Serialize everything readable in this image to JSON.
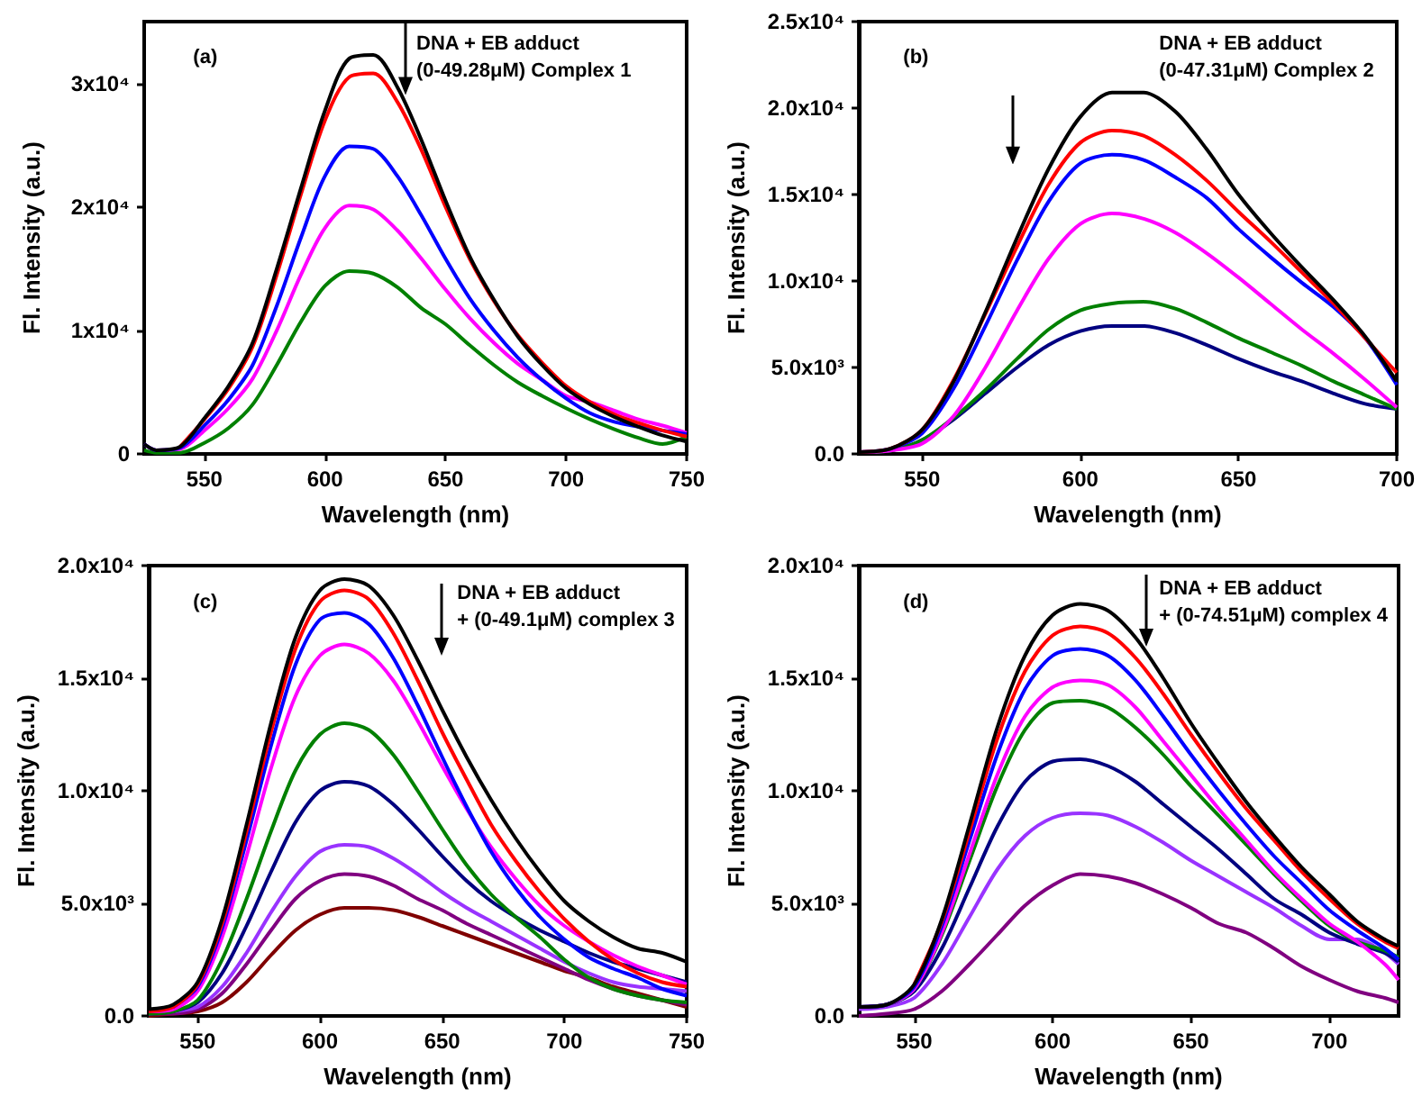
{
  "chart_data": [
    {
      "type": "line",
      "xlabel": "Wavelength (nm)",
      "ylabel": "Fl. Intensity (a.u.)",
      "annotations": [
        "(a)",
        "DNA + EB adduct",
        "(0-49.28μM) Complex 1"
      ],
      "xlim": [
        525,
        750
      ],
      "xticks": [
        550,
        600,
        650,
        700,
        750
      ],
      "ylim": [
        0,
        35000
      ],
      "yticks": [
        0,
        {
          "value": 10000,
          "label": "1x10⁴"
        },
        {
          "value": 20000,
          "label": "2x10⁴"
        },
        {
          "value": 30000,
          "label": "3x10⁴"
        }
      ],
      "x": [
        525,
        530,
        540,
        550,
        560,
        570,
        580,
        590,
        600,
        610,
        620,
        630,
        640,
        650,
        660,
        670,
        680,
        690,
        700,
        710,
        720,
        730,
        740,
        750
      ],
      "series": [
        {
          "color": "#000000",
          "values": [
            800,
            300,
            600,
            2900,
            5500,
            9000,
            15000,
            21500,
            27800,
            32000,
            32300,
            29700,
            25400,
            20500,
            16000,
            12500,
            9500,
            7200,
            5300,
            4000,
            3000,
            2200,
            1500,
            1000
          ]
        },
        {
          "color": "#ff0000",
          "values": [
            null,
            null,
            600,
            2800,
            5300,
            8700,
            14500,
            21000,
            27000,
            30500,
            30800,
            28500,
            24600,
            20000,
            15800,
            12400,
            9600,
            7400,
            5500,
            4200,
            3200,
            2500,
            1900,
            1400
          ]
        },
        {
          "color": "#0000ff",
          "values": [
            800,
            300,
            500,
            2300,
            4400,
            7200,
            12000,
            17500,
            22500,
            24900,
            24700,
            22500,
            19300,
            15800,
            12600,
            10000,
            7800,
            6000,
            4500,
            3300,
            2600,
            2200,
            1900,
            1600
          ]
        },
        {
          "color": "#ff00ff",
          "values": [
            800,
            300,
            400,
            1900,
            3700,
            6100,
            10000,
            14500,
            18300,
            20100,
            19800,
            18100,
            15800,
            13300,
            11000,
            9000,
            7300,
            6000,
            4700,
            4200,
            3500,
            2800,
            2300,
            1700
          ]
        },
        {
          "color": "#008000",
          "values": [
            300,
            100,
            100,
            900,
            2100,
            4000,
            7200,
            10700,
            13600,
            14800,
            14600,
            13500,
            11800,
            10500,
            8800,
            7200,
            5800,
            4700,
            3700,
            2800,
            2000,
            1300,
            800,
            1400
          ]
        }
      ]
    },
    {
      "type": "line",
      "xlabel": "Wavelength (nm)",
      "ylabel": "Fl. Intensity (a.u.)",
      "annotations": [
        "(b)",
        "DNA + EB adduct",
        "(0-47.31μM) Complex 2"
      ],
      "xlim": [
        530,
        700
      ],
      "xticks": [
        550,
        600,
        650,
        700
      ],
      "ylim": [
        0,
        25000
      ],
      "yticks": [
        {
          "value": 0,
          "label": "0.0"
        },
        {
          "value": 5000,
          "label": "5.0x10³"
        },
        {
          "value": 10000,
          "label": "1.0x10⁴"
        },
        {
          "value": 15000,
          "label": "1.5x10⁴"
        },
        {
          "value": 20000,
          "label": "2.0x10⁴"
        },
        {
          "value": 25000,
          "label": "2.5x10⁴"
        }
      ],
      "x": [
        530,
        540,
        550,
        560,
        570,
        580,
        590,
        600,
        610,
        620,
        630,
        640,
        650,
        660,
        670,
        680,
        690,
        700
      ],
      "series": [
        {
          "color": "#000000",
          "values": [
            100,
            300,
            1400,
            4200,
            8200,
            12500,
            16500,
            19500,
            20900,
            20900,
            19800,
            17600,
            15000,
            12800,
            10800,
            8900,
            6800,
            4200
          ]
        },
        {
          "color": "#ff0000",
          "values": [
            100,
            300,
            1400,
            4300,
            8100,
            12000,
            15600,
            18000,
            18700,
            18400,
            17300,
            15800,
            14000,
            12300,
            10500,
            8700,
            6700,
            4700
          ]
        },
        {
          "color": "#0000ff",
          "values": [
            100,
            300,
            1200,
            3800,
            7400,
            11200,
            14600,
            16800,
            17300,
            17000,
            16000,
            14800,
            13000,
            11400,
            9900,
            8500,
            6700,
            4000
          ]
        },
        {
          "color": "#ff00ff",
          "values": [
            100,
            200,
            600,
            2200,
            5000,
            8300,
            11300,
            13300,
            13900,
            13600,
            12800,
            11600,
            10200,
            8700,
            7200,
            5800,
            4300,
            2700
          ]
        },
        {
          "color": "#008000",
          "values": [
            100,
            200,
            800,
            2100,
            3700,
            5500,
            7200,
            8300,
            8700,
            8800,
            8400,
            7600,
            6700,
            5900,
            5100,
            4200,
            3400,
            2600
          ]
        },
        {
          "color": "#000080",
          "values": [
            100,
            200,
            800,
            2000,
            3500,
            5000,
            6300,
            7100,
            7400,
            7400,
            7000,
            6300,
            5500,
            4800,
            4200,
            3500,
            2900,
            2600
          ]
        }
      ]
    },
    {
      "type": "line",
      "xlabel": "Wavelength (nm)",
      "ylabel": "Fl. Intensity (a.u.)",
      "annotations": [
        "(c)",
        "DNA + EB adduct",
        "+ (0-49.1μM) complex 3"
      ],
      "xlim": [
        530,
        750
      ],
      "xticks": [
        550,
        600,
        650,
        700,
        750
      ],
      "ylim": [
        0,
        20000
      ],
      "yticks": [
        {
          "value": 0,
          "label": "0.0"
        },
        {
          "value": 5000,
          "label": "5.0x10³"
        },
        {
          "value": 10000,
          "label": "1.0x10⁴"
        },
        {
          "value": 15000,
          "label": "1.5x10⁴"
        },
        {
          "value": 20000,
          "label": "2.0x10⁴"
        }
      ],
      "x": [
        530,
        540,
        550,
        560,
        570,
        580,
        590,
        600,
        610,
        620,
        630,
        640,
        650,
        660,
        670,
        680,
        690,
        700,
        710,
        720,
        730,
        740,
        750
      ],
      "series": [
        {
          "color": "#000000",
          "values": [
            300,
            500,
            1500,
            4300,
            8500,
            13000,
            16800,
            18900,
            19400,
            19100,
            17800,
            15800,
            13600,
            11500,
            9600,
            7900,
            6400,
            5100,
            4200,
            3500,
            3000,
            2800,
            2400
          ]
        },
        {
          "color": "#ff0000",
          "values": [
            200,
            400,
            1400,
            4100,
            8200,
            12600,
            16300,
            18400,
            18900,
            18500,
            17000,
            14900,
            12600,
            10500,
            8500,
            6900,
            5500,
            4300,
            3300,
            2500,
            1900,
            1500,
            1300
          ]
        },
        {
          "color": "#0000ff",
          "values": [
            null,
            400,
            1300,
            3900,
            7800,
            12000,
            15600,
            17600,
            17900,
            17400,
            15900,
            13800,
            11500,
            9300,
            7300,
            5700,
            4400,
            3400,
            2600,
            2100,
            1700,
            1200,
            900
          ]
        },
        {
          "color": "#ff00ff",
          "values": [
            200,
            300,
            1100,
            3500,
            7100,
            11000,
            14200,
            16000,
            16500,
            16100,
            14900,
            13100,
            11100,
            9200,
            7500,
            6100,
            4900,
            4000,
            3300,
            2700,
            2200,
            1800,
            1400
          ]
        },
        {
          "color": "#008000",
          "values": [
            100,
            200,
            700,
            2500,
            5200,
            8200,
            10900,
            12500,
            13000,
            12700,
            11600,
            10000,
            8300,
            6700,
            5400,
            4400,
            3500,
            2500,
            1700,
            1200,
            900,
            700,
            600
          ]
        },
        {
          "color": "#000080",
          "values": [
            100,
            200,
            600,
            1900,
            4000,
            6400,
            8600,
            10000,
            10400,
            10200,
            9400,
            8300,
            7100,
            6000,
            5100,
            4400,
            3800,
            3300,
            2800,
            2400,
            2100,
            1800,
            1500
          ]
        },
        {
          "color": "#9933ff",
          "values": [
            100,
            200,
            400,
            1300,
            2800,
            4600,
            6200,
            7300,
            7600,
            7500,
            7000,
            6300,
            5500,
            4800,
            4200,
            3600,
            3000,
            2400,
            1900,
            1500,
            1300,
            1200,
            1100
          ]
        },
        {
          "color": "#800080",
          "values": [
            100,
            100,
            300,
            1000,
            2300,
            3800,
            5200,
            6000,
            6300,
            6200,
            5800,
            5200,
            4700,
            4100,
            3600,
            3100,
            2600,
            2100,
            1600,
            1200,
            900,
            700,
            500
          ]
        },
        {
          "color": "#800000",
          "values": [
            0,
            100,
            200,
            600,
            1500,
            2700,
            3800,
            4500,
            4800,
            4800,
            4700,
            4400,
            4000,
            3600,
            3200,
            2800,
            2400,
            2000,
            1700,
            1300,
            1000,
            700,
            400
          ]
        }
      ]
    },
    {
      "type": "line",
      "xlabel": "Wavelength (nm)",
      "ylabel": "Fl. Intensity (a.u.)",
      "annotations": [
        "(d)",
        "DNA + EB adduct",
        "+ (0-74.51μM) complex 4"
      ],
      "xlim": [
        530,
        725
      ],
      "xticks": [
        550,
        600,
        650,
        700
      ],
      "ylim": [
        0,
        20000
      ],
      "yticks": [
        {
          "value": 0,
          "label": "0.0"
        },
        {
          "value": 5000,
          "label": "5.0x10³"
        },
        {
          "value": 10000,
          "label": "1.0x10⁴"
        },
        {
          "value": 15000,
          "label": "1.5x10⁴"
        },
        {
          "value": 20000,
          "label": "2.0x10⁴"
        }
      ],
      "x": [
        530,
        540,
        550,
        560,
        570,
        580,
        590,
        600,
        610,
        620,
        630,
        640,
        650,
        660,
        670,
        680,
        690,
        700,
        710,
        720,
        725
      ],
      "series": [
        {
          "color": "#000000",
          "values": [
            400,
            500,
            1400,
            4300,
            8500,
            12800,
            16000,
            17800,
            18300,
            18000,
            16800,
            15000,
            13000,
            11200,
            9500,
            8000,
            6600,
            5400,
            4200,
            3400,
            3100
          ]
        },
        {
          "color": "#ff0000",
          "values": [
            null,
            null,
            1400,
            4200,
            8200,
            12300,
            15300,
            16900,
            17300,
            17000,
            15900,
            14300,
            12500,
            10800,
            9200,
            7800,
            6400,
            5200,
            4100,
            3300,
            3000
          ]
        },
        {
          "color": "#0000ff",
          "values": [
            400,
            500,
            1300,
            4000,
            7800,
            11600,
            14500,
            16000,
            16300,
            16000,
            14900,
            13300,
            11600,
            10000,
            8500,
            7100,
            5900,
            4700,
            3800,
            3000,
            2500
          ]
        },
        {
          "color": "#ff00ff",
          "values": [
            400,
            500,
            1200,
            3700,
            7200,
            10700,
            13300,
            14600,
            14900,
            14700,
            13700,
            12200,
            10700,
            9200,
            7800,
            6400,
            5200,
            4100,
            3300,
            2300,
            1600
          ]
        },
        {
          "color": "#008000",
          "values": [
            400,
            500,
            1200,
            3600,
            6900,
            10200,
            12700,
            13900,
            14000,
            13700,
            12800,
            11600,
            10200,
            8900,
            7600,
            6300,
            5100,
            4000,
            3300,
            2900,
            2600
          ]
        },
        {
          "color": "#000080",
          "values": [
            400,
            500,
            1100,
            3000,
            5700,
            8400,
            10400,
            11300,
            11400,
            11100,
            10400,
            9400,
            8400,
            7400,
            6300,
            5200,
            4500,
            3700,
            3200,
            2800,
            2400
          ]
        },
        {
          "color": "#9933ff",
          "values": [
            300,
            400,
            800,
            2300,
            4400,
            6500,
            8000,
            8800,
            9000,
            8900,
            8400,
            7700,
            6900,
            6200,
            5500,
            4800,
            4000,
            3400,
            3400,
            2800,
            2300
          ]
        },
        {
          "color": "#800080",
          "values": [
            0,
            100,
            300,
            1100,
            2300,
            3600,
            4900,
            5800,
            6300,
            6200,
            5900,
            5400,
            4800,
            4100,
            3700,
            3000,
            2200,
            1600,
            1100,
            800,
            600
          ]
        }
      ]
    }
  ]
}
